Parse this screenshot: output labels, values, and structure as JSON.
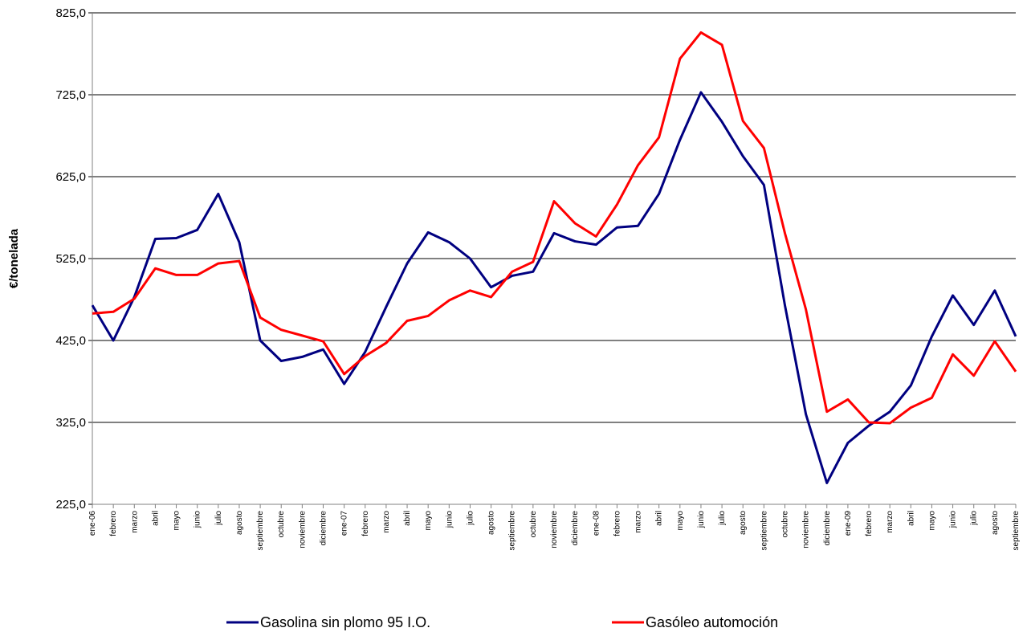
{
  "chart_data": {
    "type": "line",
    "ylabel": "€/tonelada",
    "categories": [
      "ene-06",
      "febrero",
      "marzo",
      "abril",
      "mayo",
      "junio",
      "julio",
      "agosto",
      "septiembre",
      "octubre",
      "noviembre",
      "diciembre",
      "ene-07",
      "febrero",
      "marzo",
      "abril",
      "mayo",
      "junio",
      "julio",
      "agosto",
      "septiembre",
      "octubre",
      "noviembre",
      "diciembre",
      "ene-08",
      "febrero",
      "marzo",
      "abril",
      "mayo",
      "junio",
      "julio",
      "agosto",
      "septiembre",
      "octubre",
      "noviembre",
      "diciembre",
      "ene-09",
      "febrero",
      "marzo",
      "abril",
      "mayo",
      "junio",
      "julio",
      "agosto",
      "septiembre"
    ],
    "series": [
      {
        "name": "Gasolina sin plomo 95 I.O.",
        "color": "#000080",
        "values": [
          468,
          425,
          478,
          549,
          550,
          560,
          604,
          545,
          425,
          400,
          405,
          414,
          372,
          411,
          466,
          519,
          557,
          545,
          525,
          490,
          504,
          509,
          556,
          546,
          542,
          563,
          565,
          604,
          670,
          728,
          692,
          650,
          615,
          468,
          335,
          251,
          300,
          321,
          338,
          370,
          430,
          480,
          444,
          486,
          430
        ]
      },
      {
        "name": "Gasóleo automoción",
        "color": "#ff0000",
        "values": [
          458,
          460,
          476,
          513,
          505,
          505,
          519,
          522,
          453,
          438,
          431,
          424,
          384,
          406,
          422,
          449,
          455,
          474,
          486,
          478,
          509,
          521,
          595,
          568,
          552,
          591,
          639,
          673,
          769,
          801,
          786,
          693,
          660,
          556,
          463,
          338,
          353,
          325,
          324,
          343,
          355,
          408,
          382,
          424,
          387
        ]
      }
    ],
    "ylim": [
      225,
      825
    ],
    "yticks": [
      {
        "value": 225,
        "label": "225,0"
      },
      {
        "value": 325,
        "label": "325,0"
      },
      {
        "value": 425,
        "label": "425,0"
      },
      {
        "value": 525,
        "label": "525,0"
      },
      {
        "value": 625,
        "label": "625,0"
      },
      {
        "value": 725,
        "label": "725,0"
      },
      {
        "value": 825,
        "label": "825,0"
      }
    ],
    "grid": true,
    "legend": "bottom"
  }
}
